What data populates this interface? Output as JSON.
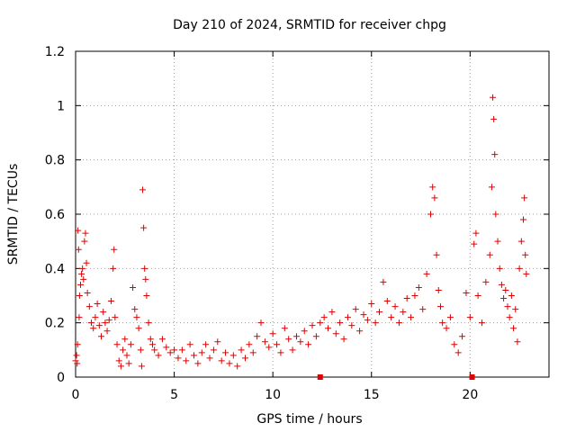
{
  "chart_data": {
    "type": "scatter",
    "title": "Day 210 of 2024, SRMTID for receiver chpg",
    "xlabel": "GPS time / hours",
    "ylabel": "SRMTID / TECUs",
    "xlim": [
      0,
      24
    ],
    "ylim": [
      0,
      1.2
    ],
    "x_ticks": [
      0,
      5,
      10,
      15,
      20
    ],
    "x_tick_labels": [
      "0",
      "5",
      "10",
      "15",
      "20"
    ],
    "y_ticks": [
      0,
      0.2,
      0.4,
      0.6,
      0.8,
      1.0,
      1.2
    ],
    "y_tick_labels": [
      "0",
      "0.2",
      "0.4",
      "0.6",
      "0.8",
      "1",
      "1.2"
    ],
    "grid": true,
    "marker": "plus",
    "series": [
      {
        "name": "SRMTID",
        "color": "#e00000",
        "points": [
          [
            0.0,
            0.06
          ],
          [
            0.05,
            0.08
          ],
          [
            0.08,
            0.05
          ],
          [
            0.1,
            0.12
          ],
          [
            0.12,
            0.54
          ],
          [
            0.15,
            0.47
          ],
          [
            0.18,
            0.22
          ],
          [
            0.2,
            0.3
          ],
          [
            0.25,
            0.34
          ],
          [
            0.3,
            0.38
          ],
          [
            0.35,
            0.4
          ],
          [
            0.4,
            0.36
          ],
          [
            0.45,
            0.5
          ],
          [
            0.5,
            0.53
          ],
          [
            0.55,
            0.42
          ],
          [
            0.6,
            0.31
          ],
          [
            0.7,
            0.26
          ],
          [
            0.8,
            0.2
          ],
          [
            0.9,
            0.18
          ],
          [
            1.0,
            0.22
          ],
          [
            1.1,
            0.27
          ],
          [
            1.2,
            0.19
          ],
          [
            1.3,
            0.15
          ],
          [
            1.4,
            0.24
          ],
          [
            1.5,
            0.2
          ],
          [
            1.6,
            0.17
          ],
          [
            1.7,
            0.21
          ],
          [
            1.8,
            0.28
          ],
          [
            1.9,
            0.4
          ],
          [
            1.95,
            0.47
          ],
          [
            2.0,
            0.22
          ],
          [
            2.1,
            0.12
          ],
          [
            2.2,
            0.06
          ],
          [
            2.3,
            0.04
          ],
          [
            2.4,
            0.1
          ],
          [
            2.5,
            0.14
          ],
          [
            2.6,
            0.08
          ],
          [
            2.7,
            0.05
          ],
          [
            2.8,
            0.12
          ],
          [
            2.9,
            0.33
          ],
          [
            3.0,
            0.25
          ],
          [
            3.1,
            0.22
          ],
          [
            3.2,
            0.18
          ],
          [
            3.3,
            0.1
          ],
          [
            3.35,
            0.04
          ],
          [
            3.4,
            0.69
          ],
          [
            3.45,
            0.55
          ],
          [
            3.5,
            0.4
          ],
          [
            3.55,
            0.36
          ],
          [
            3.6,
            0.3
          ],
          [
            3.7,
            0.2
          ],
          [
            3.8,
            0.14
          ],
          [
            3.9,
            0.12
          ],
          [
            4.0,
            0.1
          ],
          [
            4.2,
            0.08
          ],
          [
            4.4,
            0.14
          ],
          [
            4.6,
            0.11
          ],
          [
            4.8,
            0.09
          ],
          [
            5.0,
            0.1
          ],
          [
            5.2,
            0.07
          ],
          [
            5.4,
            0.1
          ],
          [
            5.6,
            0.06
          ],
          [
            5.8,
            0.12
          ],
          [
            6.0,
            0.08
          ],
          [
            6.2,
            0.05
          ],
          [
            6.4,
            0.09
          ],
          [
            6.6,
            0.12
          ],
          [
            6.8,
            0.07
          ],
          [
            7.0,
            0.1
          ],
          [
            7.2,
            0.13
          ],
          [
            7.4,
            0.06
          ],
          [
            7.6,
            0.09
          ],
          [
            7.8,
            0.05
          ],
          [
            8.0,
            0.08
          ],
          [
            8.2,
            0.04
          ],
          [
            8.4,
            0.1
          ],
          [
            8.6,
            0.07
          ],
          [
            8.8,
            0.12
          ],
          [
            9.0,
            0.09
          ],
          [
            9.2,
            0.15
          ],
          [
            9.4,
            0.2
          ],
          [
            9.6,
            0.13
          ],
          [
            9.8,
            0.11
          ],
          [
            10.0,
            0.16
          ],
          [
            10.2,
            0.12
          ],
          [
            10.4,
            0.09
          ],
          [
            10.6,
            0.18
          ],
          [
            10.8,
            0.14
          ],
          [
            11.0,
            0.1
          ],
          [
            11.2,
            0.15
          ],
          [
            11.4,
            0.13
          ],
          [
            11.6,
            0.17
          ],
          [
            11.8,
            0.12
          ],
          [
            12.0,
            0.19
          ],
          [
            12.2,
            0.15
          ],
          [
            12.4,
            0.2
          ],
          [
            12.6,
            0.22
          ],
          [
            12.8,
            0.18
          ],
          [
            13.0,
            0.24
          ],
          [
            13.2,
            0.16
          ],
          [
            13.4,
            0.2
          ],
          [
            13.6,
            0.14
          ],
          [
            13.8,
            0.22
          ],
          [
            14.0,
            0.19
          ],
          [
            14.2,
            0.25
          ],
          [
            14.4,
            0.17
          ],
          [
            14.6,
            0.23
          ],
          [
            14.8,
            0.21
          ],
          [
            15.0,
            0.27
          ],
          [
            15.2,
            0.2
          ],
          [
            15.4,
            0.24
          ],
          [
            15.6,
            0.35
          ],
          [
            15.8,
            0.28
          ],
          [
            16.0,
            0.22
          ],
          [
            16.2,
            0.26
          ],
          [
            16.4,
            0.2
          ],
          [
            16.6,
            0.24
          ],
          [
            16.8,
            0.29
          ],
          [
            17.0,
            0.22
          ],
          [
            17.2,
            0.3
          ],
          [
            17.4,
            0.33
          ],
          [
            17.6,
            0.25
          ],
          [
            17.8,
            0.38
          ],
          [
            18.0,
            0.6
          ],
          [
            18.1,
            0.7
          ],
          [
            18.2,
            0.66
          ],
          [
            18.3,
            0.45
          ],
          [
            18.4,
            0.32
          ],
          [
            18.5,
            0.26
          ],
          [
            18.6,
            0.2
          ],
          [
            18.8,
            0.18
          ],
          [
            19.0,
            0.22
          ],
          [
            19.2,
            0.12
          ],
          [
            19.4,
            0.09
          ],
          [
            19.6,
            0.15
          ],
          [
            19.8,
            0.31
          ],
          [
            20.0,
            0.22
          ],
          [
            20.2,
            0.49
          ],
          [
            20.3,
            0.53
          ],
          [
            20.4,
            0.3
          ],
          [
            20.6,
            0.2
          ],
          [
            20.8,
            0.35
          ],
          [
            21.0,
            0.45
          ],
          [
            21.1,
            0.7
          ],
          [
            21.15,
            1.03
          ],
          [
            21.2,
            0.95
          ],
          [
            21.25,
            0.82
          ],
          [
            21.3,
            0.6
          ],
          [
            21.4,
            0.5
          ],
          [
            21.5,
            0.4
          ],
          [
            21.6,
            0.34
          ],
          [
            21.7,
            0.29
          ],
          [
            21.8,
            0.32
          ],
          [
            21.9,
            0.26
          ],
          [
            22.0,
            0.22
          ],
          [
            22.1,
            0.3
          ],
          [
            22.2,
            0.18
          ],
          [
            22.3,
            0.25
          ],
          [
            22.4,
            0.13
          ],
          [
            22.5,
            0.4
          ],
          [
            22.6,
            0.5
          ],
          [
            22.7,
            0.58
          ],
          [
            22.75,
            0.66
          ],
          [
            22.8,
            0.45
          ],
          [
            22.85,
            0.38
          ]
        ]
      }
    ],
    "axis_markers": [
      12.4,
      20.1
    ]
  }
}
